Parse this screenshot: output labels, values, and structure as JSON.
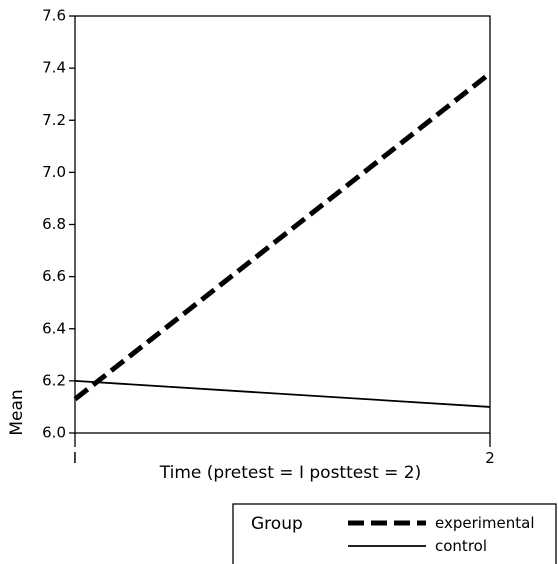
{
  "chart_data": {
    "type": "line",
    "xlabel": "Time  (pretest = I    posttest = 2)",
    "ylabel": "Mean",
    "x": [
      1,
      2
    ],
    "x_tick_labels": [
      "I",
      "2"
    ],
    "xlim": [
      1,
      2
    ],
    "ylim": [
      6.0,
      7.6
    ],
    "y_ticks": [
      6.0,
      6.2,
      6.4,
      6.6,
      6.8,
      7.0,
      7.2,
      7.4,
      7.6
    ],
    "y_tick_labels": [
      "6.0",
      "6.2",
      "6.4",
      "6.6",
      "6.8",
      "7.0",
      "7.2",
      "7.4",
      "7.6"
    ],
    "grid": false,
    "legend": {
      "title": "Group",
      "placement": "bottom-right, outside plot"
    },
    "series": [
      {
        "name": "experimental",
        "values": [
          6.13,
          7.38
        ],
        "color": "#000000",
        "line_style": "dashed"
      },
      {
        "name": "control",
        "values": [
          6.2,
          6.1
        ],
        "color": "#000000",
        "line_style": "solid"
      }
    ]
  }
}
